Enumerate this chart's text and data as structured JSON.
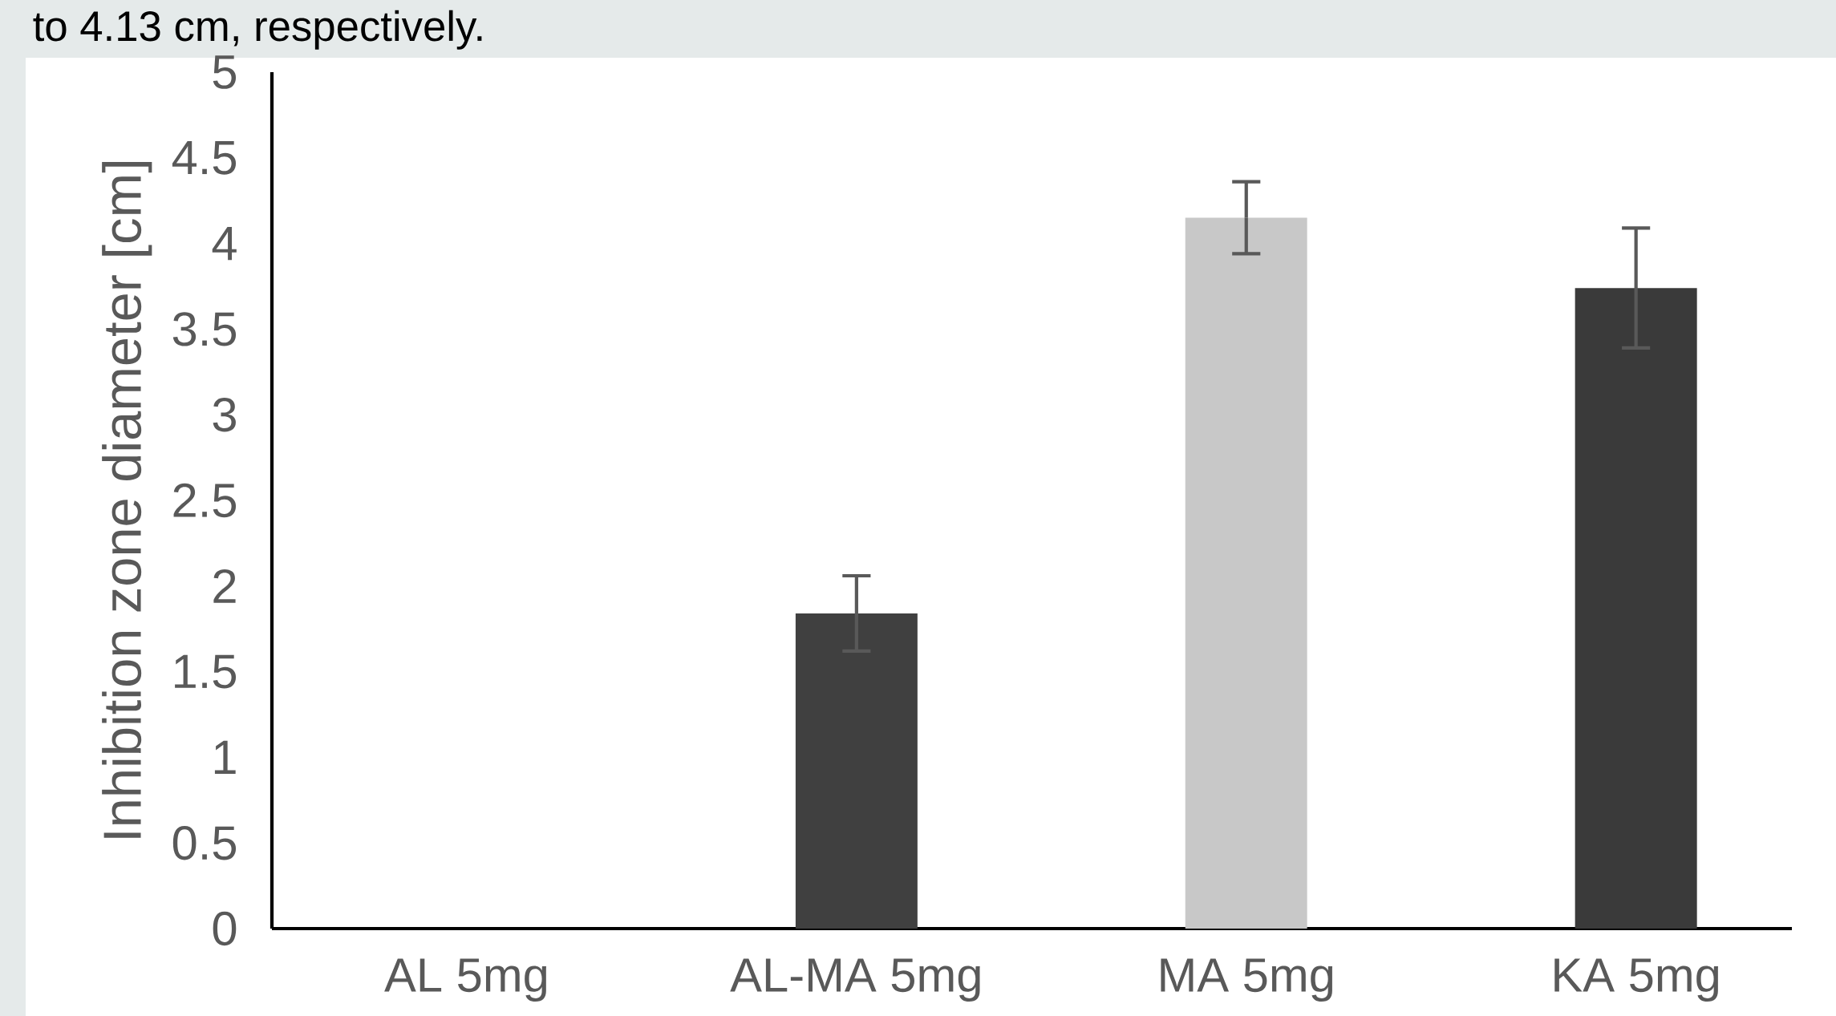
{
  "chart_data": {
    "type": "bar",
    "annotations": [
      "to 4.13 cm, respectively."
    ],
    "ylabel": "Inhibition zone diameter [cm]",
    "categories": [
      "AL 5mg",
      "AL-MA 5mg",
      "MA 5mg",
      "KA 5mg"
    ],
    "values": [
      0,
      1.84,
      4.15,
      3.74
    ],
    "errors": [
      null,
      0.22,
      0.21,
      0.35
    ],
    "colors": [
      "#000000",
      "#404040",
      "#c8c8c8",
      "#3a3a3a"
    ],
    "ylim": [
      0,
      5
    ],
    "yticks": [
      0,
      0.5,
      1,
      1.5,
      2,
      2.5,
      3,
      3.5,
      4,
      4.5,
      5
    ],
    "grid": false
  }
}
